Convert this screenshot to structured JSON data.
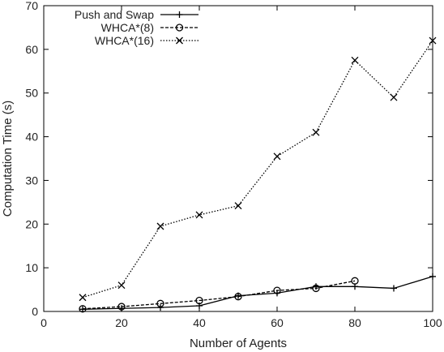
{
  "chart_data": {
    "type": "line",
    "title": "",
    "xlabel": "Number of Agents",
    "ylabel": "Computation Time (s)",
    "xlim": [
      0,
      100
    ],
    "ylim": [
      0,
      70
    ],
    "xticks": [
      0,
      20,
      40,
      60,
      80,
      100
    ],
    "yticks": [
      0,
      10,
      20,
      30,
      40,
      50,
      60,
      70
    ],
    "grid": false,
    "legend_position": "top-left",
    "series": [
      {
        "name": "Push and Swap",
        "marker": "plus",
        "line_style": "solid",
        "color": "#000000",
        "x": [
          10,
          20,
          30,
          40,
          50,
          60,
          70,
          80,
          90,
          100
        ],
        "y": [
          0.5,
          0.7,
          0.9,
          1.3,
          3.6,
          4.2,
          5.7,
          5.7,
          5.3,
          8.0
        ]
      },
      {
        "name": "WHCA*(8)",
        "marker": "circle",
        "line_style": "dashed",
        "color": "#000000",
        "x": [
          10,
          20,
          30,
          40,
          50,
          60,
          70,
          80
        ],
        "y": [
          0.6,
          1.1,
          1.8,
          2.5,
          3.4,
          4.8,
          5.3,
          7.0
        ]
      },
      {
        "name": "WHCA*(16)",
        "marker": "cross",
        "line_style": "dotted",
        "color": "#000000",
        "x": [
          10,
          20,
          30,
          40,
          50,
          60,
          70,
          80,
          90,
          100
        ],
        "y": [
          3.2,
          6.0,
          19.5,
          22.1,
          24.2,
          35.5,
          41.0,
          57.5,
          49.0,
          62.0
        ]
      }
    ]
  }
}
